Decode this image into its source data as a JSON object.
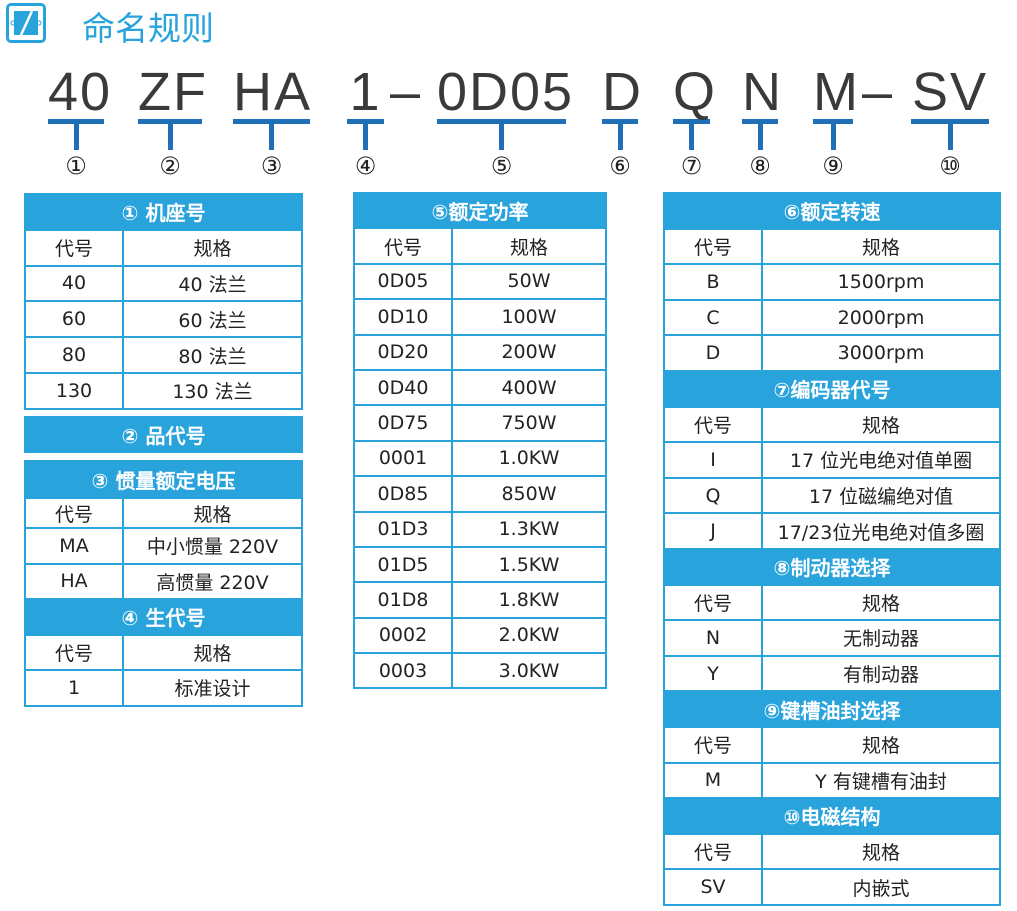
{
  "title": "命名规则",
  "code_segments": [
    {
      "code": "40",
      "num": "①"
    },
    {
      "code": "ZF",
      "num": "②"
    },
    {
      "code": "HA",
      "num": "③"
    },
    {
      "code": "1",
      "num": "④"
    },
    {
      "code": "0D05",
      "num": "⑤"
    },
    {
      "code": "D",
      "num": "⑥"
    },
    {
      "code": "Q",
      "num": "⑦"
    },
    {
      "code": "N",
      "num": "⑧"
    },
    {
      "code": "M",
      "num": "⑨"
    },
    {
      "code": "SV",
      "num": "⑩"
    }
  ],
  "dash": "–",
  "col_code": "代号",
  "col_spec": "规格",
  "t1": {
    "title": "①   机座号",
    "rows": [
      [
        "40",
        "40 法兰"
      ],
      [
        "60",
        "60 法兰"
      ],
      [
        "80",
        "80 法兰"
      ],
      [
        "130",
        "130 法兰"
      ]
    ]
  },
  "t2": {
    "title": "②   品代号"
  },
  "t3": {
    "title": "③  惯量额定电压",
    "rows": [
      [
        "MA",
        "中小惯量 220V"
      ],
      [
        "HA",
        "高惯量 220V"
      ]
    ]
  },
  "t4": {
    "title": "④   生代号",
    "rows": [
      [
        "1",
        "标准设计"
      ]
    ]
  },
  "t5": {
    "title": "⑤额定功率",
    "rows": [
      [
        "0D05",
        "50W"
      ],
      [
        "0D10",
        "100W"
      ],
      [
        "0D20",
        "200W"
      ],
      [
        "0D40",
        "400W"
      ],
      [
        "0D75",
        "750W"
      ],
      [
        "0001",
        "1.0KW"
      ],
      [
        "0D85",
        "850W"
      ],
      [
        "01D3",
        "1.3KW"
      ],
      [
        "01D5",
        "1.5KW"
      ],
      [
        "01D8",
        "1.8KW"
      ],
      [
        "0002",
        "2.0KW"
      ],
      [
        "0003",
        "3.0KW"
      ]
    ]
  },
  "t6": {
    "title": "⑥额定转速",
    "rows": [
      [
        "B",
        "1500rpm"
      ],
      [
        "C",
        "2000rpm"
      ],
      [
        "D",
        "3000rpm"
      ]
    ]
  },
  "t7": {
    "title": "⑦编码器代号",
    "rows": [
      [
        "I",
        "17 位光电绝对值单圈"
      ],
      [
        "Q",
        "17 位磁编绝对值"
      ],
      [
        "J",
        "17/23位光电绝对值多圈"
      ]
    ]
  },
  "t8": {
    "title": "⑧制动器选择",
    "rows": [
      [
        "N",
        "无制动器"
      ],
      [
        "Y",
        "有制动器"
      ]
    ]
  },
  "t9": {
    "title": "⑨键槽油封选择",
    "rows": [
      [
        "M",
        "Y 有键槽有油封"
      ]
    ]
  },
  "t10": {
    "title": "⑩电磁结构",
    "rows": [
      [
        "SV",
        "内嵌式"
      ]
    ]
  },
  "colors": {
    "accent": "#29a3dc",
    "underline": "#1e6fb5"
  }
}
